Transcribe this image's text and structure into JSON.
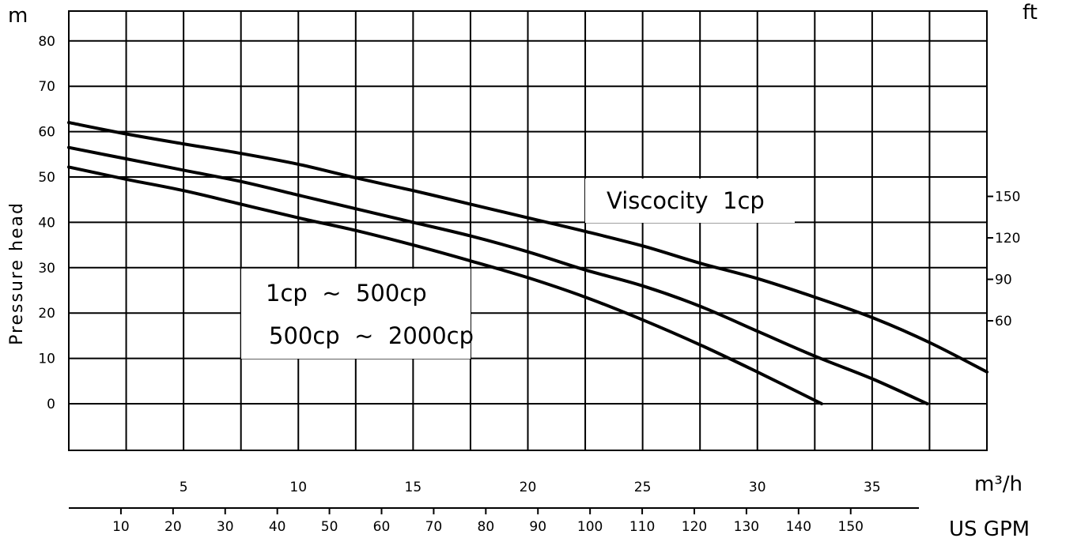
{
  "chart_data": {
    "type": "line",
    "title": "",
    "ylabel": "Pressure head",
    "y_unit_left": "m",
    "y_unit_right": "ft",
    "x_unit_primary": "m³/h",
    "x_unit_secondary": "US GPM",
    "ylim": [
      -10,
      87
    ],
    "xlim": [
      0,
      40
    ],
    "grid": true,
    "y_ticks_left": [
      "80",
      "70",
      "60",
      "50",
      "40",
      "30",
      "20",
      "10",
      "0"
    ],
    "y_ticks_right": [
      "150",
      "120",
      "90",
      "60"
    ],
    "x_ticks_m3h": [
      "5",
      "10",
      "15",
      "20",
      "25",
      "30",
      "35"
    ],
    "x_ticks_gpm": [
      "10",
      "20",
      "30",
      "40",
      "50",
      "60",
      "70",
      "80",
      "90",
      "100",
      "110",
      "120",
      "130",
      "140",
      "150"
    ],
    "series": [
      {
        "name": "Viscocity 1cp",
        "x": [
          0,
          2.5,
          5,
          7.5,
          10,
          12.5,
          15,
          17.5,
          20,
          22.5,
          25,
          27.5,
          30,
          32.5,
          35,
          37.5,
          40
        ],
        "y": [
          62,
          59.5,
          57.3,
          55.2,
          52.8,
          49.8,
          47,
          44,
          41,
          38,
          34.8,
          31,
          27.6,
          23.5,
          19,
          13.5,
          7
        ]
      },
      {
        "name": "1cp ~ 500cp",
        "x": [
          0,
          2.5,
          5,
          7.5,
          10,
          12.5,
          15,
          17.5,
          20,
          22.5,
          25,
          27.5,
          30,
          32.5,
          35,
          37.4
        ],
        "y": [
          56.5,
          54,
          51.5,
          49,
          46,
          43,
          40,
          37,
          33.5,
          29.5,
          26,
          21.5,
          16,
          10.5,
          5.5,
          0
        ]
      },
      {
        "name": "500cp ~ 2000cp",
        "x": [
          0,
          2.5,
          5,
          7.5,
          10,
          12.5,
          15,
          17.5,
          20,
          22.5,
          25,
          27.5,
          30,
          32.8
        ],
        "y": [
          52.2,
          49.5,
          47,
          44,
          41,
          38.2,
          35,
          31.5,
          27.8,
          23.5,
          18.5,
          13,
          7,
          0
        ]
      }
    ],
    "labels": {
      "viscosity_1cp": "Viscocity  1cp",
      "range_low": "1cp  ~  500cp",
      "range_high": "500cp  ~  2000cp"
    }
  }
}
